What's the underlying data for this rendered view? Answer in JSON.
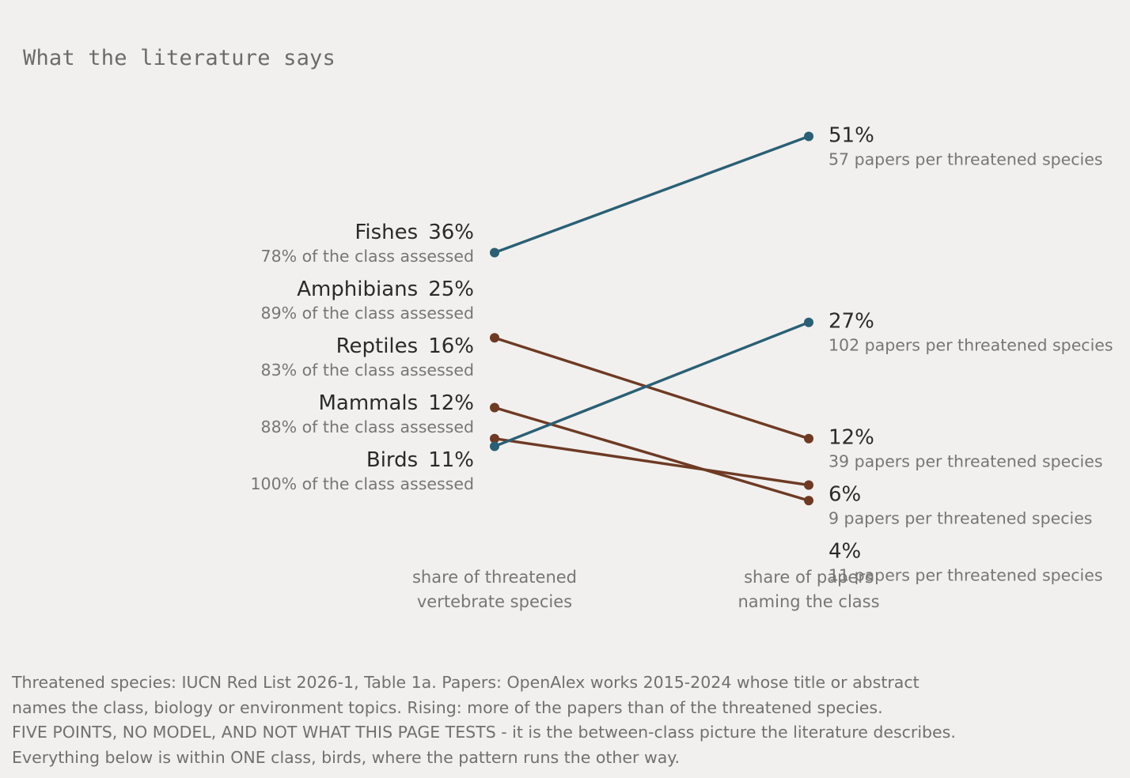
{
  "title": "What the literature says",
  "chart_data": {
    "type": "slope",
    "left_axis_label": [
      "share of threatened",
      "vertebrate species"
    ],
    "right_axis_label": [
      "share of papers",
      "naming the class"
    ],
    "series": [
      {
        "name": "Fishes",
        "left_value": 36,
        "left_text": "36%",
        "left_subtext": "78% of the class assessed",
        "right_value": 51,
        "right_text": "51%",
        "right_subtext": "57 papers per threatened species",
        "direction": "rising"
      },
      {
        "name": "Amphibians",
        "left_value": 25,
        "left_text": "25%",
        "left_subtext": "89% of the class assessed",
        "right_value": 12,
        "right_text": "12%",
        "right_subtext": "39 papers per threatened species",
        "direction": "falling"
      },
      {
        "name": "Reptiles",
        "left_value": 16,
        "left_text": "16%",
        "left_subtext": "83% of the class assessed",
        "right_value": 4,
        "right_text": "4%",
        "right_subtext": "11 papers per threatened species",
        "direction": "falling"
      },
      {
        "name": "Mammals",
        "left_value": 12,
        "left_text": "12%",
        "left_subtext": "88% of the class assessed",
        "right_value": 6,
        "right_text": "6%",
        "right_subtext": "9 papers per threatened species",
        "direction": "falling"
      },
      {
        "name": "Birds",
        "left_value": 11,
        "left_text": "11%",
        "left_subtext": "100% of the class assessed",
        "right_value": 27,
        "right_text": "27%",
        "right_subtext": "102 papers per threatened species",
        "direction": "rising"
      }
    ],
    "colors": {
      "rising": "#2a5f75",
      "falling": "#6e3a24"
    }
  },
  "notes": [
    "Threatened species: IUCN Red List 2026-1, Table 1a. Papers: OpenAlex works 2015-2024 whose title or abstract",
    "names the class, biology or environment topics. Rising: more of the papers than of the threatened species.",
    "FIVE POINTS, NO MODEL, AND NOT WHAT THIS PAGE TESTS - it is the between-class picture the literature describes.",
    "Everything below is within ONE class, birds, where the pattern runs the other way."
  ]
}
